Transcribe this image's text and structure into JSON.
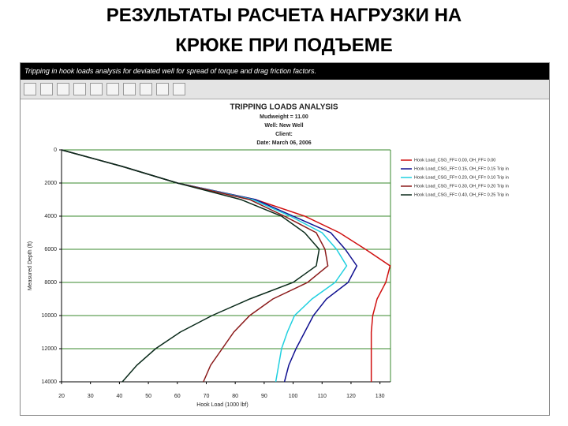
{
  "slide_title": [
    "РЕЗУЛЬТАТЫ РАСЧЕТА НАГРУЗКИ НА",
    "КРЮКЕ ПРИ ПОДЪЕМЕ"
  ],
  "window_title": "Tripping in hook loads analysis for deviated well for spread of torque and drag friction factors.",
  "chart_data": {
    "type": "line",
    "title": "TRIPPING LOADS ANALYSIS",
    "subtitle": [
      "Mudweight = 11.00",
      "Well: New Well",
      "Client:",
      "Date: March 06, 2006"
    ],
    "x_label": "Hook Load (1000 lbf)",
    "y_label": "Measured Depth (ft)",
    "xlim": [
      20,
      135
    ],
    "xticks": [
      20,
      30,
      40,
      50,
      60,
      70,
      80,
      90,
      100,
      110,
      120,
      130
    ],
    "ylim": [
      14000,
      0
    ],
    "yticks": [
      0,
      2000,
      4000,
      6000,
      8000,
      10000,
      12000,
      14000
    ],
    "grid": true,
    "grid_color": "#3a8a2e",
    "legend": "right",
    "y": [
      0,
      1000,
      2000,
      3000,
      4000,
      5000,
      6000,
      7000,
      8000,
      9000,
      10000,
      11000,
      12000,
      13000,
      14000
    ],
    "series": [
      {
        "name": "Hook Load_CSG_FF= 0.00, OH_FF= 0.00",
        "color": "#d01010",
        "x": [
          20,
          41,
          60,
          87,
          104,
          116,
          125,
          133.5,
          132,
          129,
          127.5,
          127,
          127,
          127,
          127
        ]
      },
      {
        "name": "Hook Load_CSG_FF= 0.15, OH_FF= 0.15 Trip in",
        "color": "#101090",
        "x": [
          20,
          41,
          60,
          87,
          100,
          113,
          118,
          122,
          119,
          111.5,
          107,
          104,
          101,
          98.5,
          97
        ]
      },
      {
        "name": "Hook Load_CSG_FF= 0.20, OH_FF= 0.10 Trip in",
        "color": "#20d0e0",
        "x": [
          20,
          41,
          60,
          86,
          99,
          110,
          115,
          118.5,
          114.5,
          106.5,
          100.5,
          98,
          96,
          95,
          94
        ]
      },
      {
        "name": "Hook Load_CSG_FF= 0.30, OH_FF= 0.20 Trip in",
        "color": "#8b1a1a",
        "x": [
          20,
          41,
          60,
          85,
          97,
          108,
          111,
          112,
          105,
          93,
          85,
          79.5,
          75.5,
          71.5,
          69
        ]
      },
      {
        "name": "Hook Load_CSG_FF= 0.40, OH_FF= 0.25 Trip in",
        "color": "#0a2a1a",
        "x": [
          20,
          41,
          60,
          82,
          96,
          104,
          109,
          108,
          100,
          85,
          72,
          61,
          52.5,
          46,
          41
        ]
      }
    ]
  }
}
